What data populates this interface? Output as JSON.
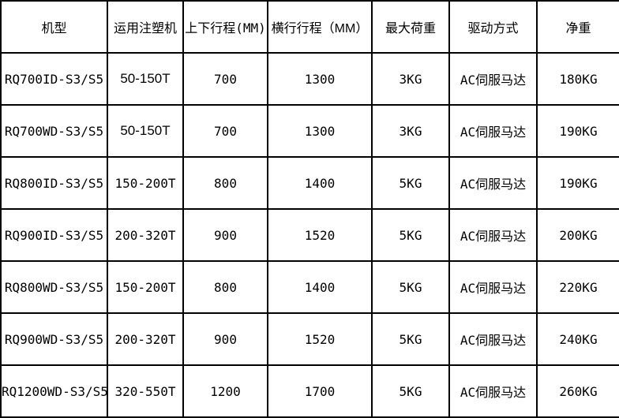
{
  "table": {
    "columns": [
      "机型",
      "运用注塑机",
      "上下行程(MM)",
      "横行行程（MM）",
      "最大荷重",
      "驱动方式",
      "净重"
    ],
    "rows": [
      [
        "RQ700ID-S3/S5",
        "50-150T",
        "700",
        "1300",
        "3KG",
        "AC伺服马达",
        "180KG"
      ],
      [
        "RQ700WD-S3/S5",
        "50-150T",
        "700",
        "1300",
        "3KG",
        "AC伺服马达",
        "190KG"
      ],
      [
        "RQ800ID-S3/S5",
        "150-200T",
        "800",
        "1400",
        "5KG",
        "AC伺服马达",
        "190KG"
      ],
      [
        "RQ900ID-S3/S5",
        "200-320T",
        "900",
        "1520",
        "5KG",
        "AC伺服马达",
        "200KG"
      ],
      [
        "RQ800WD-S3/S5",
        "150-200T",
        "800",
        "1400",
        "5KG",
        "AC伺服马达",
        "220KG"
      ],
      [
        "RQ900WD-S3/S5",
        "200-320T",
        "900",
        "1520",
        "5KG",
        "AC伺服马达",
        "240KG"
      ],
      [
        "RQ1200WD-S3/S5",
        "320-550T",
        "1200",
        "1700",
        "5KG",
        "AC伺服马达",
        "260KG"
      ]
    ],
    "colors": {
      "border": "#000000",
      "background": "#ffffff",
      "text": "#000000"
    }
  }
}
